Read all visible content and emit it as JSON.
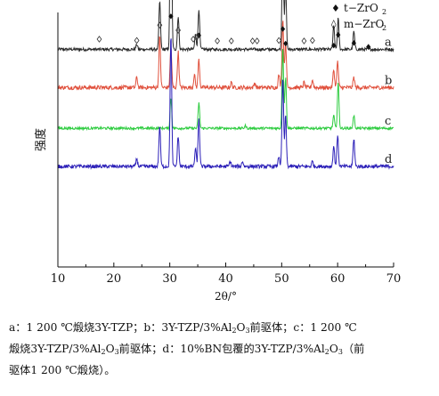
{
  "chart_data": {
    "type": "line",
    "xlabel": "2θ/°",
    "ylabel": "强度",
    "xlim": [
      10,
      70
    ],
    "x_ticks": [
      "10",
      "20",
      "30",
      "40",
      "50",
      "60",
      "70"
    ],
    "legend": [
      {
        "symbol": "♦",
        "label": "t−ZrO",
        "sub": "2"
      },
      {
        "symbol": "◊",
        "label": "m−ZrO",
        "sub": "2"
      }
    ],
    "series": [
      {
        "name": "a",
        "color": "#2a2a2a",
        "base": 0.855,
        "noise": 0.006,
        "peaks": [
          [
            24.1,
            0.02
          ],
          [
            28.2,
            0.19
          ],
          [
            30.2,
            0.88
          ],
          [
            31.5,
            0.13
          ],
          [
            34.6,
            0.06
          ],
          [
            35.2,
            0.16
          ],
          [
            50.2,
            0.46
          ],
          [
            50.7,
            0.26
          ],
          [
            59.3,
            0.09
          ],
          [
            60.1,
            0.12
          ],
          [
            62.9,
            0.07
          ]
        ]
      },
      {
        "name": "b",
        "color": "#e0503c",
        "base": 0.705,
        "noise": 0.008,
        "peaks": [
          [
            24.1,
            0.04
          ],
          [
            28.2,
            0.2
          ],
          [
            30.2,
            0.16
          ],
          [
            31.5,
            0.14
          ],
          [
            34.4,
            0.05
          ],
          [
            35.2,
            0.11
          ],
          [
            41.0,
            0.02
          ],
          [
            45.2,
            0.02
          ],
          [
            49.5,
            0.05
          ],
          [
            50.2,
            0.27
          ],
          [
            50.7,
            0.18
          ],
          [
            54.0,
            0.02
          ],
          [
            55.5,
            0.03
          ],
          [
            59.3,
            0.07
          ],
          [
            60.0,
            0.1
          ],
          [
            62.9,
            0.04
          ]
        ]
      },
      {
        "name": "c",
        "color": "#2ecc40",
        "base": 0.545,
        "noise": 0.005,
        "peaks": [
          [
            30.2,
            0.12
          ],
          [
            35.2,
            0.1
          ],
          [
            43.5,
            0.01
          ],
          [
            50.2,
            0.32
          ],
          [
            50.7,
            0.2
          ],
          [
            59.3,
            0.05
          ],
          [
            60.1,
            0.18
          ],
          [
            62.9,
            0.05
          ]
        ]
      },
      {
        "name": "d",
        "color": "#2b1fb8",
        "base": 0.395,
        "noise": 0.007,
        "peaks": [
          [
            24.1,
            0.03
          ],
          [
            28.2,
            0.16
          ],
          [
            30.2,
            0.52
          ],
          [
            31.5,
            0.12
          ],
          [
            34.6,
            0.07
          ],
          [
            35.2,
            0.19
          ],
          [
            40.8,
            0.02
          ],
          [
            43.0,
            0.02
          ],
          [
            49.5,
            0.04
          ],
          [
            50.2,
            0.35
          ],
          [
            50.7,
            0.2
          ],
          [
            55.5,
            0.02
          ],
          [
            59.3,
            0.08
          ],
          [
            60.0,
            0.12
          ],
          [
            62.9,
            0.11
          ]
        ]
      }
    ],
    "t_markers": [
      30.2,
      35.2,
      50.2,
      50.7,
      59.3,
      60.1,
      62.9,
      65.5
    ],
    "t_marker_level": [
      0.985,
      0.91,
      0.935,
      0.878,
      0.87,
      0.912,
      0.88,
      0.865
    ],
    "m_markers": [
      17.4,
      24.1,
      28.2,
      31.5,
      34.2,
      34.9,
      38.5,
      41.0,
      44.8,
      45.6,
      49.5,
      54.0,
      55.5
    ],
    "m_marker_level": [
      0.895,
      0.89,
      0.95,
      0.93,
      0.895,
      0.905,
      0.888,
      0.888,
      0.888,
      0.888,
      0.89,
      0.888,
      0.89
    ]
  },
  "caption": {
    "line1_pre": "a：1 200 ℃煅烧3Y-TZP；b：3Y-TZP/3%Al",
    "line1_mid": "O",
    "line1_post": "前驱体；c：1 200 ℃",
    "line2_pre": "煅烧3Y-TZP/3%Al",
    "line2_mid": "O",
    "line2_post": "前驱体；d：10%BN包覆的3Y-TZP/3%Al",
    "line2_mid2": "O",
    "line2_end": "（前",
    "line3": "驱体1 200 ℃煅烧）。",
    "sub2": "2",
    "sub3": "3"
  }
}
